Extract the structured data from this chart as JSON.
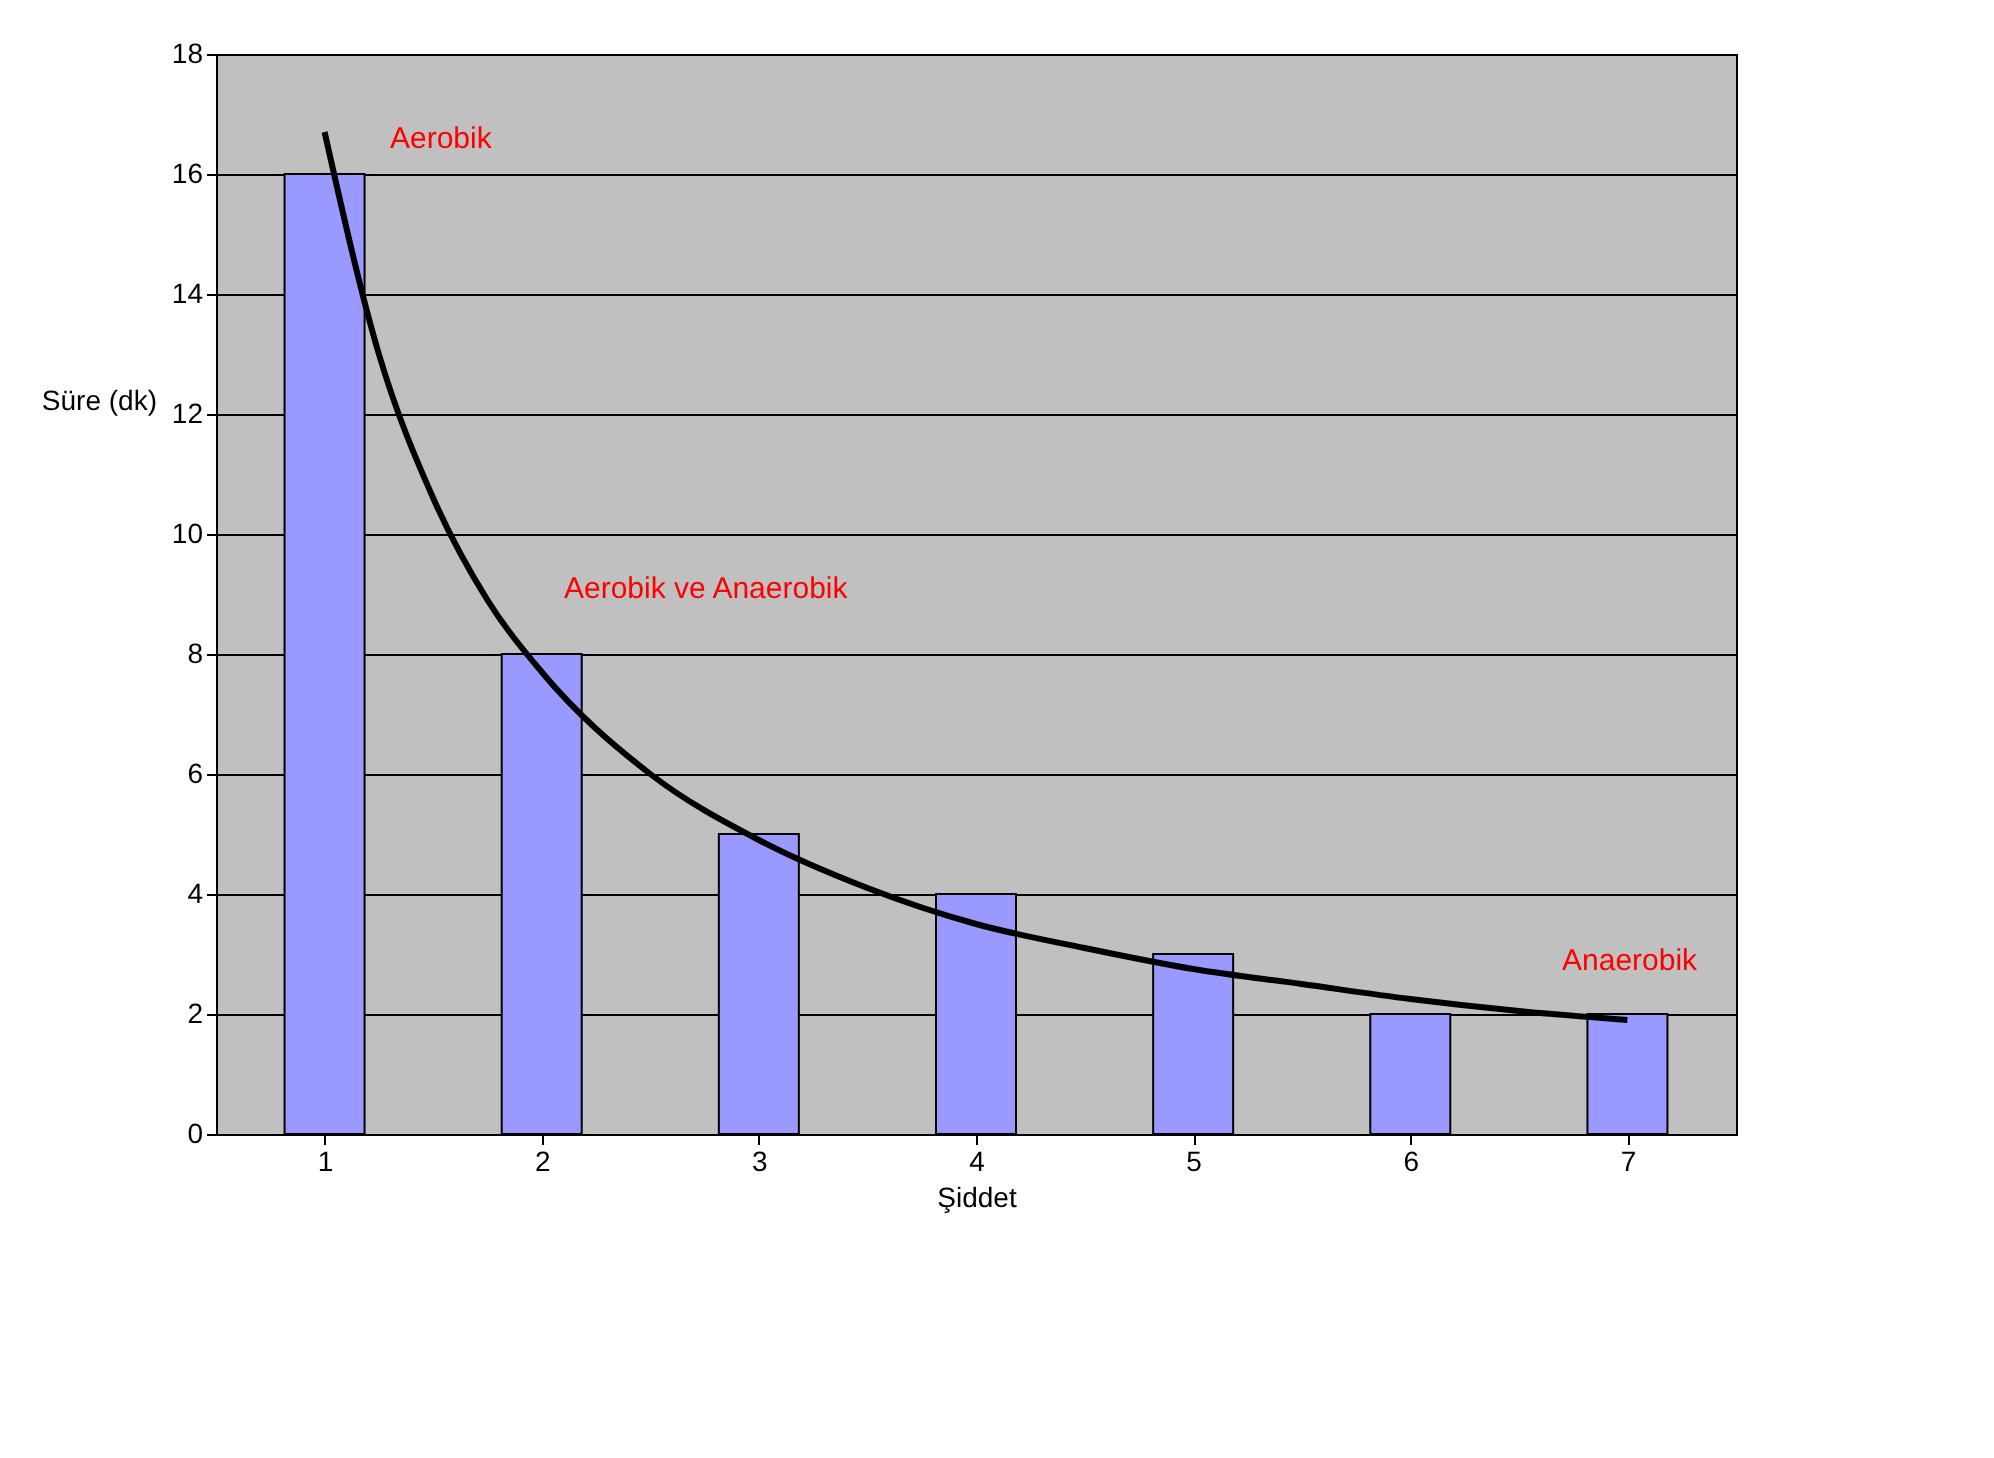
{
  "chart_data": {
    "type": "bar",
    "xlabel": "Şiddet",
    "ylabel": "Süre (dk)",
    "x": [
      1,
      2,
      3,
      4,
      5,
      6,
      7
    ],
    "xlim": [
      0.5,
      7.5
    ],
    "xticks": [
      1,
      2,
      3,
      4,
      5,
      6,
      7
    ],
    "series": [
      {
        "color": "#9999ff",
        "values": [
          16,
          8,
          5,
          4,
          3,
          2,
          2
        ]
      },
      {
        "type": "line",
        "color": "#000000",
        "x": [
          1,
          1.25,
          1.5,
          1.75,
          2,
          2.5,
          3,
          3.5,
          4,
          4.5,
          5,
          5.5,
          6,
          6.5,
          7
        ],
        "values": [
          16.7,
          13.0,
          10.6,
          8.9,
          7.7,
          6.0,
          4.9,
          4.1,
          3.5,
          3.1,
          2.75,
          2.5,
          2.25,
          2.05,
          1.9
        ]
      }
    ],
    "ylim": [
      0,
      18
    ],
    "yticks": [
      0,
      2,
      4,
      6,
      8,
      10,
      12,
      14,
      16,
      18
    ],
    "grid": "y",
    "annotations": [
      "Aerobik",
      "Aerobik ve Anaerobik",
      "Anaerobik"
    ]
  }
}
